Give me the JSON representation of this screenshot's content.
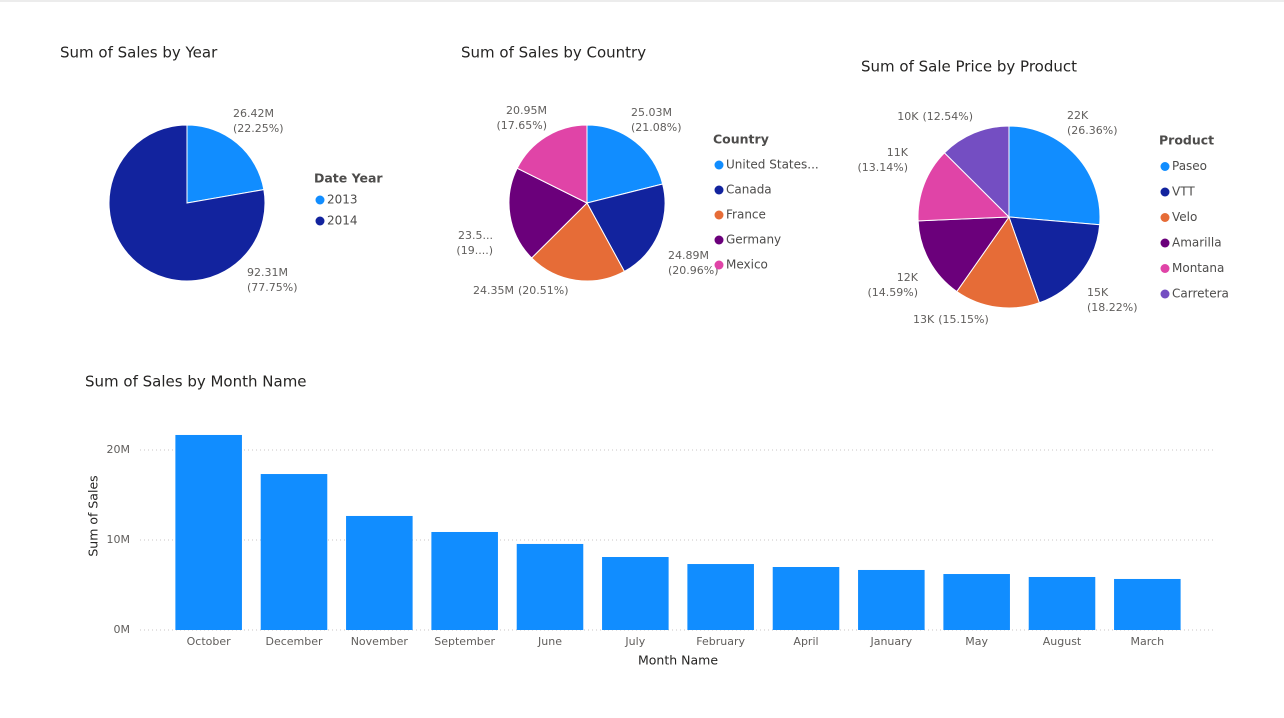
{
  "chart_data": [
    {
      "type": "pie",
      "title": "Sum of Sales by Year",
      "legend_title": "Date Year",
      "categories": [
        "2013",
        "2014"
      ],
      "values": [
        26420000,
        92310000
      ],
      "value_labels": [
        [
          "26.42M",
          "(22.25%)"
        ],
        [
          "92.31M",
          "(77.75%)"
        ]
      ],
      "colors": [
        "#118DFF",
        "#12239E"
      ]
    },
    {
      "type": "pie",
      "title": "Sum of Sales by Country",
      "legend_title": "Country",
      "categories": [
        "United States...",
        "Canada",
        "France",
        "Germany",
        "Mexico"
      ],
      "values": [
        25030000,
        24890000,
        24350000,
        23510000,
        20950000
      ],
      "value_labels": [
        [
          "25.03M",
          "(21.08%)"
        ],
        [
          "24.89M",
          "(20.96%)"
        ],
        [
          "24.35M",
          "(20.51%)"
        ],
        [
          "23.5...",
          "(19....)"
        ],
        [
          "20.95M",
          "(17.65%)"
        ]
      ],
      "colors": [
        "#118DFF",
        "#12239E",
        "#E66C37",
        "#6B007B",
        "#E044A7"
      ]
    },
    {
      "type": "pie",
      "title": "Sum of Sale Price by Product",
      "legend_title": "Product",
      "categories": [
        "Paseo",
        "VTT",
        "Velo",
        "Amarilla",
        "Montana",
        "Carretera"
      ],
      "values": [
        21770,
        15050,
        12510,
        12050,
        10850,
        10360
      ],
      "value_labels": [
        [
          "22K",
          "(26.36%)"
        ],
        [
          "15K",
          "(18.22%)"
        ],
        [
          "13K",
          "(15.15%)"
        ],
        [
          "12K",
          "(14.59%)"
        ],
        [
          "11K",
          "(13.14%)"
        ],
        [
          "10K",
          "(12.54%)"
        ]
      ],
      "colors": [
        "#118DFF",
        "#12239E",
        "#E66C37",
        "#6B007B",
        "#E044A7",
        "#744EC2"
      ]
    },
    {
      "type": "bar",
      "title": "Sum of Sales by Month Name",
      "xlabel": "Month Name",
      "ylabel": "Sum of Sales",
      "categories": [
        "October",
        "December",
        "November",
        "September",
        "June",
        "July",
        "February",
        "April",
        "January",
        "May",
        "August",
        "March"
      ],
      "values": [
        21670000,
        17330000,
        12670000,
        10890000,
        9560000,
        8110000,
        7330000,
        7000000,
        6670000,
        6220000,
        5890000,
        5670000
      ],
      "color": "#118DFF",
      "ylim": [
        0,
        22000000
      ],
      "yticks": [
        {
          "value": 0,
          "label": "0M"
        },
        {
          "value": 10000000,
          "label": "10M"
        },
        {
          "value": 20000000,
          "label": "20M"
        }
      ],
      "grid": true
    }
  ]
}
